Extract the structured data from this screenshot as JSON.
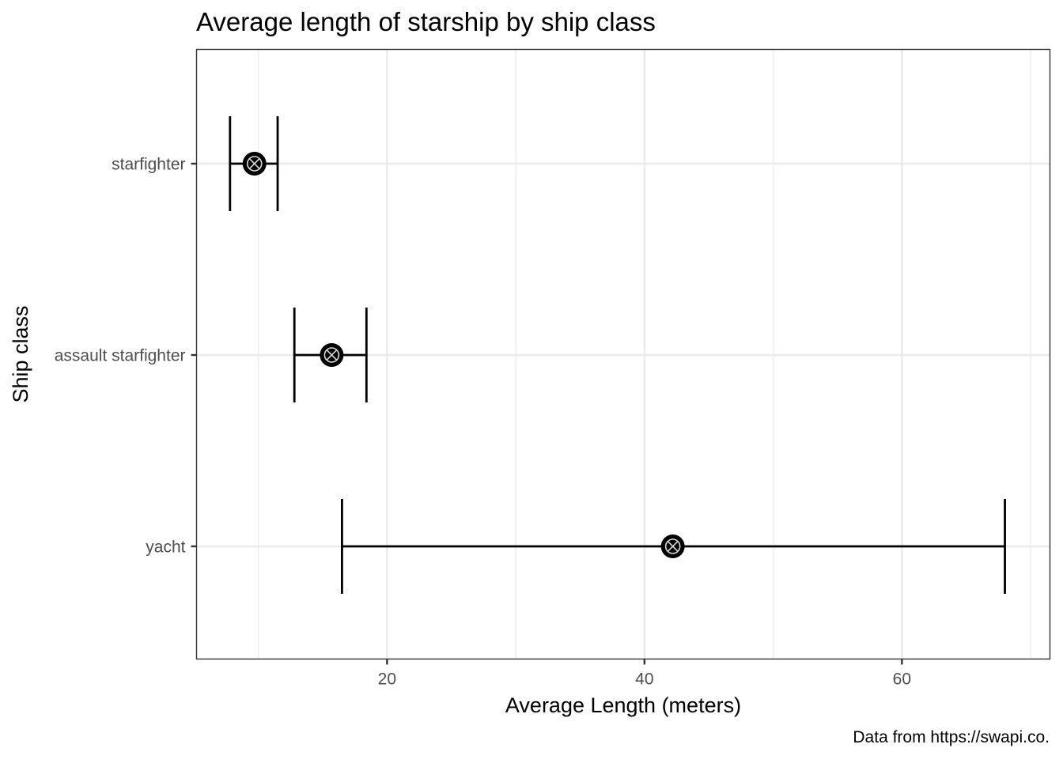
{
  "chart_data": {
    "type": "errorbar",
    "title": "Average length of starship by ship class",
    "xlabel": "Average Length (meters)",
    "ylabel": "Ship class",
    "caption": "Data from https://swapi.co.",
    "xlim": [
      5.2,
      71.5
    ],
    "x_ticks": [
      20,
      40,
      60
    ],
    "x_minor_ticks": [
      10,
      30,
      50,
      70
    ],
    "categories": [
      "starfighter",
      "assault starfighter",
      "yacht"
    ],
    "series": [
      {
        "values": [
          9.7,
          15.7,
          42.2
        ],
        "lower": [
          7.8,
          12.8,
          16.5
        ],
        "upper": [
          11.5,
          18.4,
          68.0
        ]
      }
    ],
    "grid": true,
    "legend": "none"
  }
}
